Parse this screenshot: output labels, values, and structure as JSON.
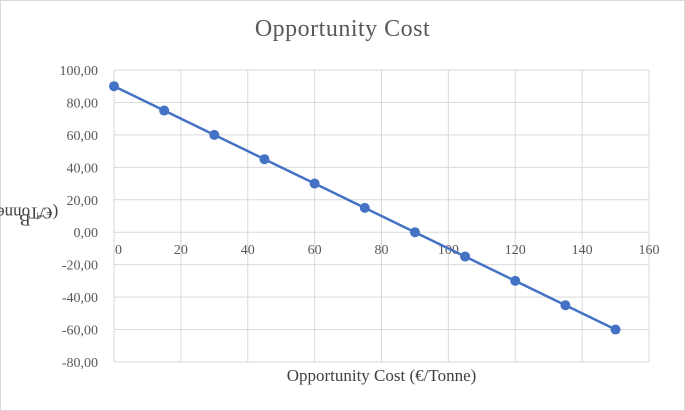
{
  "chart_data": {
    "type": "line",
    "title": "Opportunity  Cost",
    "xlabel": "Opportunity Cost (€/Tonne)",
    "ylabel_main": "B",
    "ylabel_sub": "T",
    "ylabel_rest": " (€/Tonne)",
    "xlim": [
      0,
      160
    ],
    "ylim": [
      -80,
      100
    ],
    "x_ticks": [
      "0",
      "20",
      "40",
      "60",
      "80",
      "100",
      "120",
      "140",
      "160"
    ],
    "x_tick_values": [
      0,
      20,
      40,
      60,
      80,
      100,
      120,
      140,
      160
    ],
    "y_ticks": [
      "100,00",
      "80,00",
      "60,00",
      "40,00",
      "20,00",
      "0,00",
      "-20,00",
      "-40,00",
      "-60,00",
      "-80,00"
    ],
    "y_tick_values": [
      100,
      80,
      60,
      40,
      20,
      0,
      -20,
      -40,
      -60,
      -80
    ],
    "grid": true,
    "legend": "none",
    "series": [
      {
        "color": "#4472c4",
        "x": [
          0,
          15,
          30,
          45,
          60,
          75,
          90,
          105,
          120,
          135,
          150
        ],
        "y": [
          90,
          75,
          60,
          45,
          30,
          15,
          0,
          -15,
          -30,
          -45,
          -60
        ]
      }
    ]
  }
}
